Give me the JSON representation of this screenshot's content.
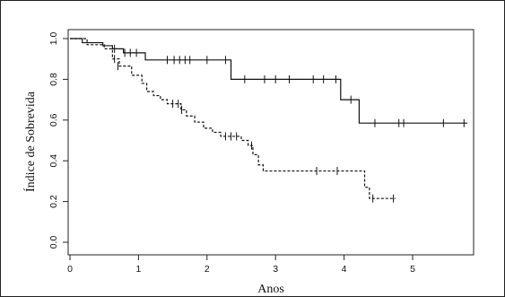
{
  "chart_data": {
    "type": "line",
    "subtype": "kaplan-meier step",
    "title": "",
    "xlabel": "Anos",
    "ylabel": "Índice de Sobrevida",
    "xlim": [
      0,
      5.9
    ],
    "ylim": [
      0,
      1.0
    ],
    "xticks": [
      "0",
      "1",
      "2",
      "3",
      "4",
      "5"
    ],
    "yticks": [
      "0.0",
      "0.2",
      "0.4",
      "0.6",
      "0.8",
      "1.0"
    ],
    "grid": false,
    "legend": "none",
    "series": [
      {
        "style": "solid",
        "color": "#111111",
        "steps": [
          [
            0,
            1.0
          ],
          [
            0.18,
            0.98
          ],
          [
            0.48,
            0.965
          ],
          [
            0.62,
            0.95
          ],
          [
            0.78,
            0.93
          ],
          [
            1.1,
            0.895
          ],
          [
            2.35,
            0.8
          ],
          [
            3.95,
            0.7
          ],
          [
            4.22,
            0.585
          ],
          [
            5.8,
            0.585
          ]
        ],
        "censored": [
          [
            0.65,
            0.95
          ],
          [
            0.8,
            0.93
          ],
          [
            0.88,
            0.93
          ],
          [
            0.97,
            0.93
          ],
          [
            1.42,
            0.895
          ],
          [
            1.52,
            0.895
          ],
          [
            1.6,
            0.895
          ],
          [
            1.68,
            0.895
          ],
          [
            1.75,
            0.895
          ],
          [
            2.0,
            0.895
          ],
          [
            2.27,
            0.895
          ],
          [
            2.55,
            0.8
          ],
          [
            2.84,
            0.8
          ],
          [
            3.0,
            0.8
          ],
          [
            3.2,
            0.8
          ],
          [
            3.55,
            0.8
          ],
          [
            3.7,
            0.8
          ],
          [
            3.88,
            0.8
          ],
          [
            4.1,
            0.7
          ],
          [
            4.45,
            0.585
          ],
          [
            4.8,
            0.585
          ],
          [
            4.87,
            0.585
          ],
          [
            5.45,
            0.585
          ],
          [
            5.75,
            0.585
          ]
        ]
      },
      {
        "style": "dashed",
        "color": "#111111",
        "steps": [
          [
            0,
            1.0
          ],
          [
            0.25,
            0.97
          ],
          [
            0.5,
            0.95
          ],
          [
            0.62,
            0.9
          ],
          [
            0.72,
            0.865
          ],
          [
            0.9,
            0.82
          ],
          [
            1.05,
            0.78
          ],
          [
            1.12,
            0.74
          ],
          [
            1.22,
            0.72
          ],
          [
            1.32,
            0.7
          ],
          [
            1.42,
            0.68
          ],
          [
            1.62,
            0.65
          ],
          [
            1.7,
            0.62
          ],
          [
            1.82,
            0.59
          ],
          [
            1.95,
            0.56
          ],
          [
            2.08,
            0.54
          ],
          [
            2.2,
            0.52
          ],
          [
            2.5,
            0.5
          ],
          [
            2.6,
            0.475
          ],
          [
            2.67,
            0.43
          ],
          [
            2.75,
            0.38
          ],
          [
            2.82,
            0.35
          ],
          [
            4.0,
            0.35
          ],
          [
            4.3,
            0.27
          ],
          [
            4.37,
            0.215
          ],
          [
            4.75,
            0.215
          ]
        ],
        "censored": [
          [
            0.65,
            0.9
          ],
          [
            0.7,
            0.865
          ],
          [
            1.5,
            0.68
          ],
          [
            1.58,
            0.68
          ],
          [
            1.63,
            0.65
          ],
          [
            2.27,
            0.52
          ],
          [
            2.35,
            0.52
          ],
          [
            2.43,
            0.52
          ],
          [
            2.65,
            0.475
          ],
          [
            3.6,
            0.35
          ],
          [
            3.9,
            0.35
          ],
          [
            4.42,
            0.215
          ],
          [
            4.72,
            0.215
          ]
        ]
      }
    ]
  }
}
